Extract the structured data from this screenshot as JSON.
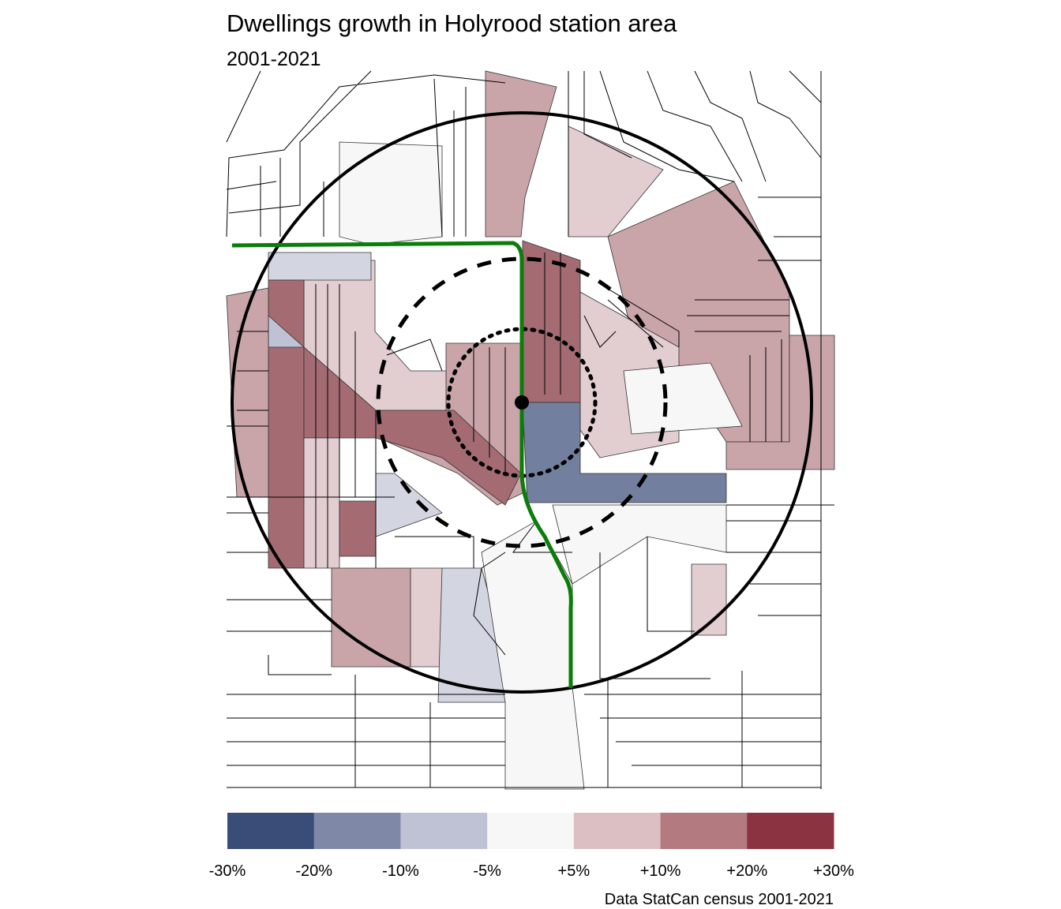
{
  "header": {
    "title": "Dwellings growth in Holyrood station area",
    "subtitle": "2001-2021"
  },
  "legend": {
    "colors": [
      "#3a4d78",
      "#8088a8",
      "#bec2d4",
      "#f7f7f7",
      "#dcbfc3",
      "#b37a7f",
      "#8b3340"
    ],
    "labels": [
      "-30%",
      "-20%",
      "-10%",
      "-5%",
      "+5%",
      "+10%",
      "+20%",
      "+30%"
    ]
  },
  "caption": "Data StatCan census 2001-2021"
}
